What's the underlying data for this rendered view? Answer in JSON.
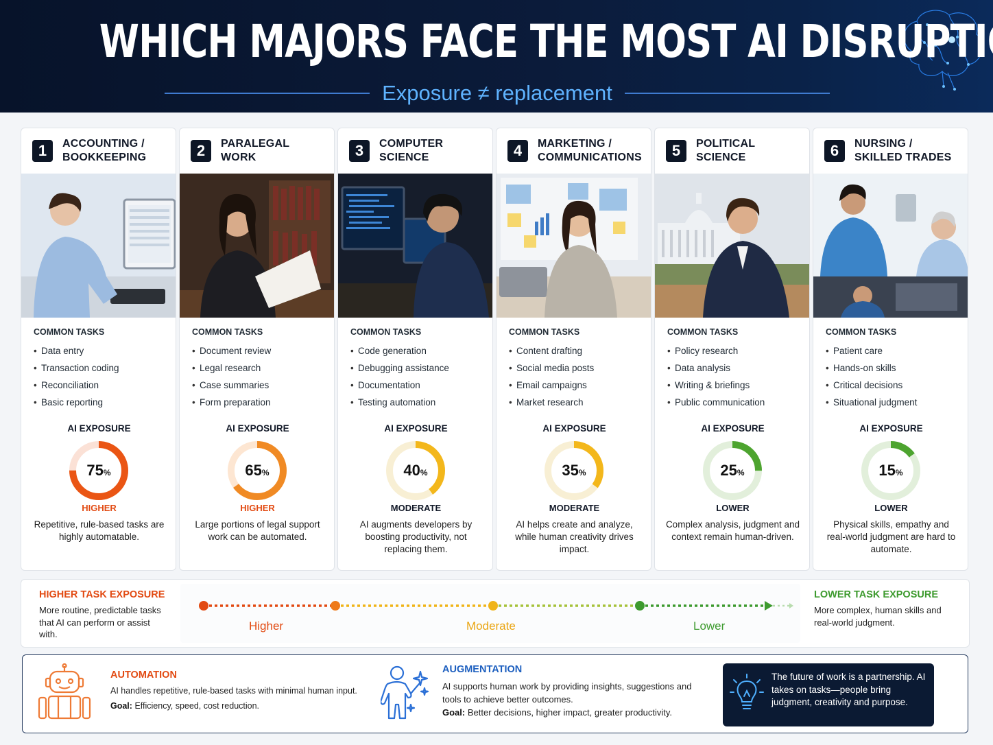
{
  "header": {
    "title": "WHICH MAJORS FACE THE MOST AI DISRUPTION?",
    "subtitle": "Exposure ≠ replacement"
  },
  "labels": {
    "common_tasks": "COMMON TASKS",
    "ai_exposure": "AI EXPOSURE"
  },
  "cards": [
    {
      "rank": "1",
      "name_line1": "ACCOUNTING /",
      "name_line2": "BOOKKEEPING",
      "tasks": [
        "Data entry",
        "Transaction coding",
        "Reconciliation",
        "Basic reporting"
      ],
      "exposure_pct": 75,
      "pct_text": "75",
      "level": "HIGHER",
      "color": "#ea5514",
      "track_color": "#fbe1d6",
      "desc": "Repetitive, rule-based tasks are highly automatable.",
      "photo_icon": "accountant-photo"
    },
    {
      "rank": "2",
      "name_line1": "PARALEGAL",
      "name_line2": "WORK",
      "tasks": [
        "Document review",
        "Legal research",
        "Case summaries",
        "Form preparation"
      ],
      "exposure_pct": 65,
      "pct_text": "65",
      "level": "HIGHER",
      "color": "#f08a24",
      "track_color": "#fde6d2",
      "desc": "Large portions of legal support work can be automated.",
      "photo_icon": "paralegal-photo"
    },
    {
      "rank": "3",
      "name_line1": "COMPUTER",
      "name_line2": "SCIENCE",
      "tasks": [
        "Code generation",
        "Debugging assistance",
        "Documentation",
        "Testing automation"
      ],
      "exposure_pct": 40,
      "pct_text": "40",
      "level": "MODERATE",
      "color": "#f3b71b",
      "track_color": "#f8efd4",
      "desc": "AI augments developers by boosting productivity, not replacing them.",
      "photo_icon": "programmer-photo"
    },
    {
      "rank": "4",
      "name_line1": "MARKETING /",
      "name_line2": "COMMUNICATIONS",
      "tasks": [
        "Content drafting",
        "Social media posts",
        "Email campaigns",
        "Market research"
      ],
      "exposure_pct": 35,
      "pct_text": "35",
      "level": "MODERATE",
      "color": "#f3b71b",
      "track_color": "#f8efd4",
      "desc": "AI helps create and analyze, while human creativity drives impact.",
      "photo_icon": "marketer-photo"
    },
    {
      "rank": "5",
      "name_line1": "POLITICAL",
      "name_line2": "SCIENCE",
      "tasks": [
        "Policy research",
        "Data analysis",
        "Writing & briefings",
        "Public communication"
      ],
      "exposure_pct": 25,
      "pct_text": "25",
      "level": "LOWER",
      "color": "#4da42f",
      "track_color": "#e2efdb",
      "desc": "Complex analysis, judgment and context remain human-driven.",
      "photo_icon": "analyst-photo"
    },
    {
      "rank": "6",
      "name_line1": "NURSING /",
      "name_line2": "SKILLED TRADES",
      "tasks": [
        "Patient care",
        "Hands-on skills",
        "Critical decisions",
        "Situational judgment"
      ],
      "exposure_pct": 15,
      "pct_text": "15",
      "level": "LOWER",
      "color": "#4da42f",
      "track_color": "#e2efdb",
      "desc": "Physical skills, empathy and real-world judgment are hard to automate.",
      "photo_icon": "nurse-photo"
    }
  ],
  "scale": {
    "higher_title": "HIGHER TASK EXPOSURE",
    "higher_desc": "More routine, predictable tasks that AI can perform or assist with.",
    "lower_title": "LOWER TASK EXPOSURE",
    "lower_desc": "More complex, human skills and real-world judgment.",
    "marks": [
      {
        "label": "Higher",
        "color": "#e24a12"
      },
      {
        "label": "Moderate",
        "color": "#eaa511"
      },
      {
        "label": "Lower",
        "color": "#3d9a2e"
      }
    ]
  },
  "bottom": {
    "automation_title": "AUTOMATION",
    "automation_desc": "AI handles repetitive, rule-based tasks with minimal human input.",
    "automation_goal_label": "Goal:",
    "automation_goal": "Efficiency, speed, cost reduction.",
    "augmentation_title": "AUGMENTATION",
    "augmentation_desc": "AI supports human work by providing insights, suggestions and tools to achieve better outcomes.",
    "augmentation_goal_label": "Goal:",
    "augmentation_goal": "Better decisions, higher impact, greater productivity.",
    "quote": "The future of work is a partnership. AI takes on tasks—people bring judgment, creativity and purpose.",
    "icons": [
      "robot-icon",
      "person-sparkle-icon",
      "lightbulb-icon"
    ]
  }
}
